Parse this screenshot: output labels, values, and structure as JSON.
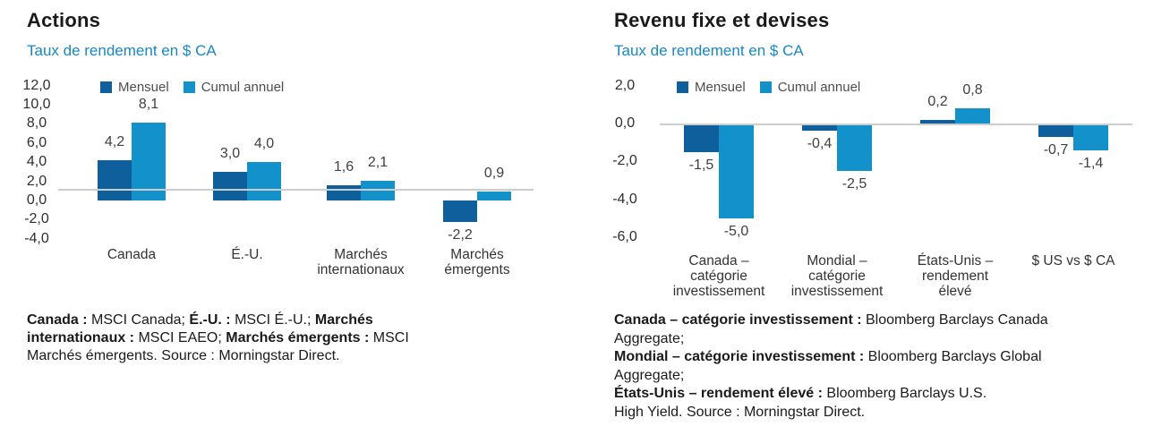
{
  "colors": {
    "series": [
      "#0f5f9c",
      "#1291cb"
    ],
    "subtitle": "#1987c5",
    "zero_line": "#cdcdcd",
    "title_text": "#1a1a1a",
    "axis_text": "#2e2e2e",
    "label_text": "#404040"
  },
  "chart_data": [
    {
      "type": "bar",
      "title": "Actions",
      "subtitle": "Taux de rendement en $ CA",
      "legend_position": "top",
      "grid": false,
      "categories": [
        "Canada",
        "É.-U.",
        "Marchés internationaux",
        "Marchés émergents"
      ],
      "categories_display": [
        "Canada",
        "É.-U.",
        "Marchés\ninternationaux",
        "Marchés\némergents"
      ],
      "series": [
        {
          "name": "Mensuel",
          "values": [
            4.2,
            3.0,
            1.6,
            -2.2
          ],
          "labels": [
            "4,2",
            "3,0",
            "1,6",
            "-2,2"
          ]
        },
        {
          "name": "Cumul annuel",
          "values": [
            8.1,
            4.0,
            2.1,
            0.9
          ],
          "labels": [
            "8,1",
            "4,0",
            "2,1",
            "0,9"
          ]
        }
      ],
      "ylabel": "Taux de rendement en $ CA",
      "ylim": [
        -4,
        12
      ],
      "yticks": {
        "values": [
          12,
          10,
          8,
          6,
          4,
          2,
          0,
          -2,
          -4
        ],
        "labels": [
          "12,0",
          "10,0",
          "8,0",
          "6,0",
          "4,0",
          "2,0",
          "0,0",
          "-2,0",
          "-4,0"
        ]
      }
    },
    {
      "type": "bar",
      "title": "Revenu fixe et devises",
      "subtitle": "Taux de rendement en $ CA",
      "legend_position": "top",
      "grid": false,
      "categories": [
        "Canada – catégorie investissement",
        "Mondial – catégorie investissement",
        "États-Unis – rendement élevé",
        "$ US vs $ CA"
      ],
      "categories_display": [
        "Canada –\ncatégorie\ninvestissement",
        "Mondial –\ncatégorie\ninvestissement",
        "États-Unis –\nrendement\nélevé",
        "$ US vs $ CA"
      ],
      "series": [
        {
          "name": "Mensuel",
          "values": [
            -1.5,
            -0.4,
            0.2,
            -0.7
          ],
          "labels": [
            "-1,5",
            "-0,4",
            "0,2",
            "-0,7"
          ]
        },
        {
          "name": "Cumul annuel",
          "values": [
            -5.0,
            -2.5,
            0.8,
            -1.4
          ],
          "labels": [
            "-5,0",
            "-2,5",
            "0,8",
            "-1,4"
          ]
        }
      ],
      "ylabel": "Taux de rendement en $ CA",
      "ylim": [
        -6,
        2
      ],
      "yticks": {
        "values": [
          2,
          0,
          -2,
          -4,
          -6
        ],
        "labels": [
          "2,0",
          "0,0",
          "-2,0",
          "-4,0",
          "-6,0"
        ]
      }
    }
  ],
  "footnotes": [
    [
      [
        {
          "t": "Canada :",
          "b": true
        },
        {
          "t": " MSCI Canada; ",
          "b": false
        },
        {
          "t": "É.-U. :",
          "b": true
        },
        {
          "t": " MSCI É.-U.; ",
          "b": false
        },
        {
          "t": "Marchés",
          "b": true
        }
      ],
      [
        {
          "t": "internationaux :",
          "b": true
        },
        {
          "t": " MSCI EAEO; ",
          "b": false
        },
        {
          "t": "Marchés émergents :",
          "b": true
        },
        {
          "t": " MSCI",
          "b": false
        }
      ],
      [
        {
          "t": "Marchés émergents. Source : Morningstar Direct.",
          "b": false
        }
      ]
    ],
    [
      [
        {
          "t": "Canada – catégorie investissement :",
          "b": true
        },
        {
          "t": " Bloomberg Barclays Canada",
          "b": false
        }
      ],
      [
        {
          "t": "Aggregate;",
          "b": false
        }
      ],
      [
        {
          "t": "Mondial – catégorie investissement :",
          "b": true
        },
        {
          "t": " Bloomberg Barclays Global",
          "b": false
        }
      ],
      [
        {
          "t": "Aggregate;",
          "b": false
        }
      ],
      [
        {
          "t": "États-Unis – rendement élevé :",
          "b": true
        },
        {
          "t": " Bloomberg Barclays U.S.",
          "b": false
        }
      ],
      [
        {
          "t": "High Yield. Source : Morningstar Direct.",
          "b": false
        }
      ]
    ]
  ]
}
